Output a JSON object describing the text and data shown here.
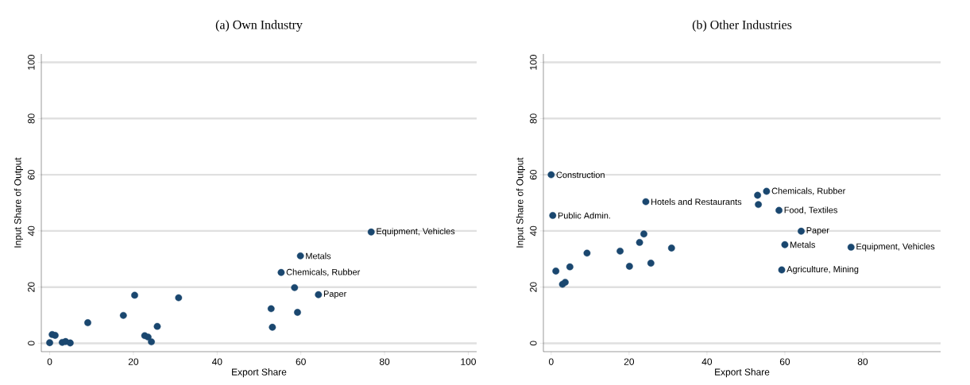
{
  "chart_data": [
    {
      "type": "scatter",
      "title": "(a) Own Industry",
      "xlabel": "Export Share",
      "ylabel": "Input Share of Output",
      "series": [
        {
          "color": "#1a476f",
          "x": [
            0,
            0.6,
            1.3,
            3,
            3.8,
            4.9,
            9.1,
            17.6,
            20.3,
            22.7,
            23.5,
            24.3,
            25.7,
            30.8,
            52.9,
            53.2,
            55.3,
            58.5,
            59.2,
            59.9,
            64.2,
            76.8
          ],
          "values": [
            0.2,
            3.1,
            2.8,
            0.3,
            0.6,
            0.1,
            7.3,
            9.9,
            17.1,
            2.7,
            2.2,
            0.5,
            6,
            16.2,
            12.3,
            5.7,
            25.2,
            19.8,
            11,
            31.1,
            17.3,
            39.6
          ]
        }
      ],
      "xlim": [
        -2,
        102
      ],
      "ylim": [
        -3,
        103
      ],
      "xticks": [
        0,
        20,
        40,
        60,
        80,
        100
      ],
      "yticks": [
        0,
        20,
        40,
        60,
        80,
        100
      ],
      "grid": "y",
      "marker": "circle",
      "annotations": [
        {
          "text": "Equipment, Vehicles",
          "x": 76.8,
          "y": 39.6
        },
        {
          "text": "Metals",
          "x": 59.9,
          "y": 31.1
        },
        {
          "text": "Chemicals, Rubber",
          "x": 55.3,
          "y": 25.2
        },
        {
          "text": "Paper",
          "x": 64.2,
          "y": 17.3
        }
      ]
    },
    {
      "type": "scatter",
      "title": "(b) Other Industries",
      "xlabel": "Export Share",
      "ylabel": "Input Share of Output",
      "series": [
        {
          "color": "#1a476f",
          "x": [
            0,
            0.4,
            1.2,
            2.9,
            3.6,
            4.8,
            9.2,
            17.7,
            20.1,
            22.7,
            23.8,
            24.3,
            25.6,
            30.9,
            53.0,
            53.2,
            55.3,
            58.5,
            59.2,
            60.0,
            64.2,
            77.0
          ],
          "values": [
            60,
            45.5,
            25.7,
            21.0,
            21.7,
            27.2,
            32.1,
            32.8,
            27.4,
            35.9,
            38.9,
            50.4,
            28.5,
            33.9,
            52.7,
            49.4,
            54.1,
            47.3,
            26.1,
            35.1,
            39.9,
            34.2
          ]
        }
      ],
      "xlim": [
        -2,
        100
      ],
      "ylim": [
        -3,
        103
      ],
      "xticks": [
        0,
        20,
        40,
        60,
        80
      ],
      "yticks": [
        0,
        20,
        40,
        60,
        80,
        100
      ],
      "grid": "y",
      "marker": "circle",
      "annotations": [
        {
          "text": "Construction",
          "x": 0,
          "y": 60
        },
        {
          "text": "Public Admin.",
          "x": 0.4,
          "y": 45.5
        },
        {
          "text": "Hotels and Restaurants",
          "x": 24.3,
          "y": 50.4
        },
        {
          "text": "Chemicals, Rubber",
          "x": 55.3,
          "y": 54.1
        },
        {
          "text": "Food, Textiles",
          "x": 58.5,
          "y": 47.3
        },
        {
          "text": "Paper",
          "x": 64.2,
          "y": 39.9
        },
        {
          "text": "Metals",
          "x": 60.0,
          "y": 35.1
        },
        {
          "text": "Equipment, Vehicles",
          "x": 77.0,
          "y": 34.2
        },
        {
          "text": "Agriculture, Mining",
          "x": 59.2,
          "y": 26.1
        }
      ]
    }
  ]
}
